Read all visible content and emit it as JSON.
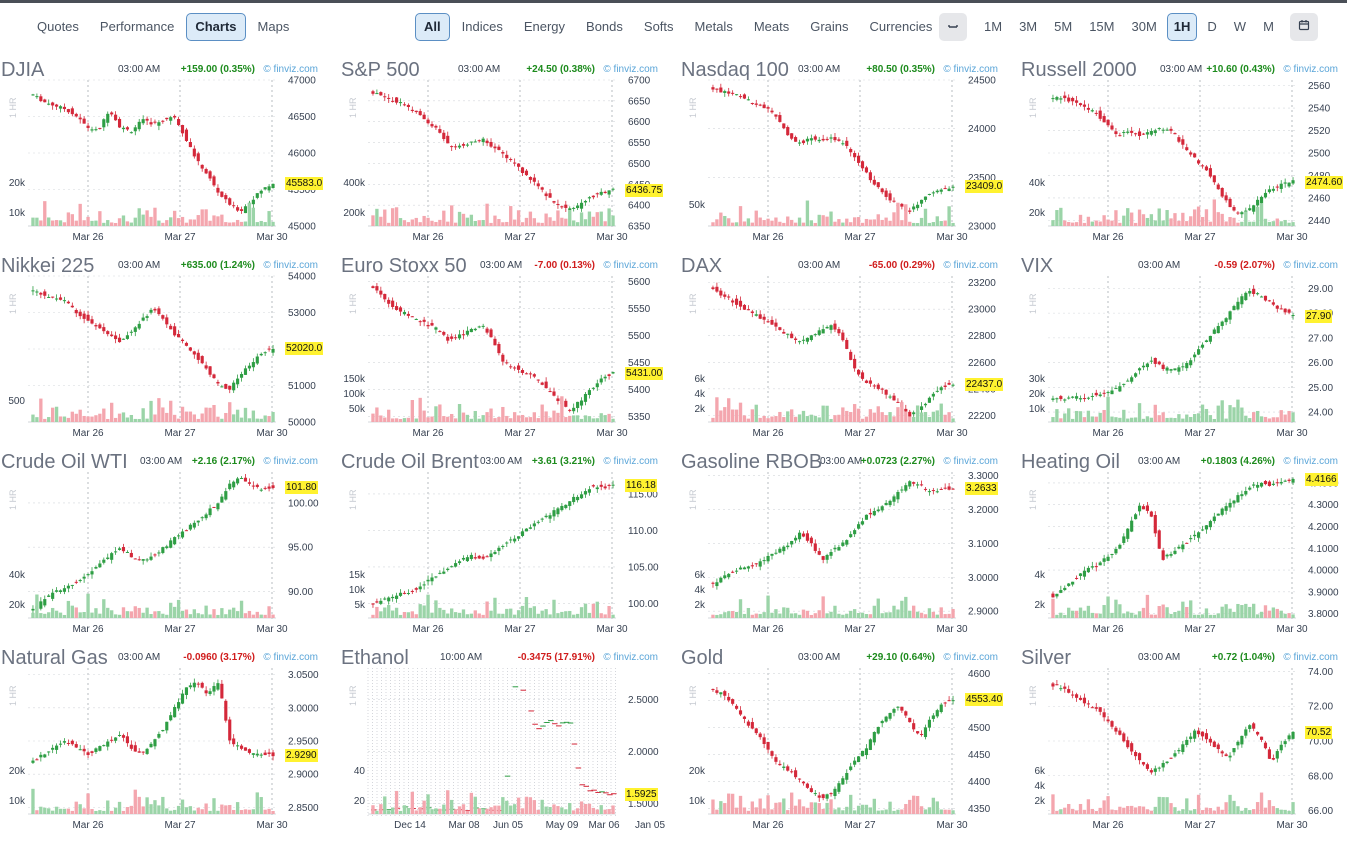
{
  "nav_tabs": [
    {
      "label": "Quotes",
      "active": false
    },
    {
      "label": "Performance",
      "active": false
    },
    {
      "label": "Charts",
      "active": true
    },
    {
      "label": "Maps",
      "active": false
    }
  ],
  "filter_tabs": [
    {
      "label": "All",
      "active": true
    },
    {
      "label": "Indices",
      "active": false
    },
    {
      "label": "Energy",
      "active": false
    },
    {
      "label": "Bonds",
      "active": false
    },
    {
      "label": "Softs",
      "active": false
    },
    {
      "label": "Metals",
      "active": false
    },
    {
      "label": "Meats",
      "active": false
    },
    {
      "label": "Grains",
      "active": false
    },
    {
      "label": "Currencies",
      "active": false
    }
  ],
  "timeframe": {
    "options": [
      "1M",
      "3M",
      "5M",
      "15M",
      "30M",
      "1H",
      "D",
      "W",
      "M"
    ],
    "active": "1H",
    "icons": [
      "minus-icon",
      "calendar-icon"
    ]
  },
  "brand": "© finviz.com",
  "period_label": "1 HR",
  "colors": {
    "up": "#1d8b1d",
    "down": "#d01c1c",
    "candle_up": "#2e9e44",
    "candle_down": "#d4283a",
    "vol_up": "#9bd4a8",
    "vol_down": "#f4a6ae",
    "last_tag": "#fff230"
  },
  "panels": [
    {
      "name": "DJIA",
      "time": "03:00 AM",
      "change": "+159.00 (0.35%)",
      "dir": "up",
      "last": "45583.0",
      "chart_data": {
        "type": "candlestick",
        "y_ticks": [
          "47000",
          "46500",
          "46000",
          "45500",
          "45000"
        ],
        "ylim": [
          45000,
          47000
        ],
        "x_ticks": [
          "Mar 26",
          "Mar 27",
          "Mar 30"
        ],
        "volume_ticks": [
          "20k",
          "10k"
        ],
        "path": [
          46800,
          46700,
          46650,
          46600,
          46500,
          46350,
          46300,
          46600,
          46350,
          46300,
          46450,
          46400,
          46450,
          46500,
          46200,
          45900,
          45700,
          45450,
          45300,
          45200,
          45350,
          45500,
          45583
        ]
      }
    },
    {
      "name": "S&P 500",
      "time": "03:00 AM",
      "change": "+24.50 (0.38%)",
      "dir": "up",
      "last": "6436.75",
      "chart_data": {
        "type": "candlestick",
        "y_ticks": [
          "6700",
          "6650",
          "6600",
          "6550",
          "6500",
          "6450",
          "6400",
          "6350"
        ],
        "ylim": [
          6350,
          6700
        ],
        "x_ticks": [
          "Mar 26",
          "Mar 27",
          "Mar 30"
        ],
        "volume_ticks": [
          "400k",
          "200k"
        ],
        "path": [
          6670,
          6660,
          6650,
          6640,
          6620,
          6600,
          6580,
          6540,
          6540,
          6550,
          6560,
          6540,
          6520,
          6500,
          6470,
          6450,
          6420,
          6400,
          6390,
          6400,
          6420,
          6430,
          6437
        ]
      }
    },
    {
      "name": "Nasdaq 100",
      "time": "03:00 AM",
      "change": "+80.50 (0.35%)",
      "dir": "up",
      "last": "23409.0",
      "chart_data": {
        "type": "candlestick",
        "y_ticks": [
          "24500",
          "24000",
          "23500",
          "23000"
        ],
        "ylim": [
          23000,
          24500
        ],
        "x_ticks": [
          "Mar 26",
          "Mar 27",
          "Mar 30"
        ],
        "volume_ticks": [
          "50k"
        ],
        "path": [
          24400,
          24380,
          24350,
          24300,
          24250,
          24200,
          24100,
          23900,
          23850,
          23900,
          23880,
          23900,
          23850,
          23700,
          23550,
          23400,
          23300,
          23200,
          23150,
          23250,
          23350,
          23380,
          23409
        ]
      }
    },
    {
      "name": "Russell 2000",
      "time": "03:00 AM",
      "change": "+10.60 (0.43%)",
      "dir": "up",
      "last": "2474.60",
      "chart_data": {
        "type": "candlestick",
        "y_ticks": [
          "2560",
          "2540",
          "2520",
          "2500",
          "2480",
          "2460",
          "2440"
        ],
        "ylim": [
          2435,
          2565
        ],
        "x_ticks": [
          "Mar 26",
          "Mar 27",
          "Mar 30"
        ],
        "volume_ticks": [
          "40k",
          "20k"
        ],
        "path": [
          2550,
          2548,
          2545,
          2540,
          2535,
          2525,
          2515,
          2520,
          2515,
          2520,
          2522,
          2518,
          2505,
          2495,
          2485,
          2470,
          2455,
          2445,
          2450,
          2460,
          2468,
          2472,
          2475
        ]
      }
    },
    {
      "name": "Nikkei 225",
      "time": "03:00 AM",
      "change": "+635.00 (1.24%)",
      "dir": "up",
      "last": "52020.0",
      "chart_data": {
        "type": "candlestick",
        "y_ticks": [
          "54000",
          "53000",
          "52000",
          "51000",
          "50000"
        ],
        "ylim": [
          50000,
          54000
        ],
        "x_ticks": [
          "Mar 26",
          "Mar 27",
          "Mar 30"
        ],
        "volume_ticks": [
          "500"
        ],
        "path": [
          53600,
          53500,
          53400,
          53300,
          53000,
          52800,
          52600,
          52400,
          52200,
          52500,
          52800,
          53100,
          52800,
          52400,
          52100,
          51800,
          51400,
          51000,
          50900,
          51300,
          51600,
          51900,
          52020
        ]
      }
    },
    {
      "name": "Euro Stoxx 50",
      "time": "03:00 AM",
      "change": "-7.00 (0.13%)",
      "dir": "down",
      "last": "5431.00",
      "chart_data": {
        "type": "candlestick",
        "y_ticks": [
          "5600",
          "5550",
          "5500",
          "5450",
          "5400",
          "5350"
        ],
        "ylim": [
          5340,
          5610
        ],
        "x_ticks": [
          "Mar 26",
          "Mar 27",
          "Mar 30"
        ],
        "volume_ticks": [
          "150k",
          "100k",
          "50k"
        ],
        "path": [
          5590,
          5570,
          5550,
          5540,
          5530,
          5520,
          5510,
          5490,
          5500,
          5510,
          5520,
          5490,
          5450,
          5440,
          5430,
          5420,
          5400,
          5380,
          5360,
          5380,
          5400,
          5420,
          5431
        ]
      }
    },
    {
      "name": "DAX",
      "time": "03:00 AM",
      "change": "-65.00 (0.29%)",
      "dir": "down",
      "last": "22437.0",
      "chart_data": {
        "type": "candlestick",
        "y_ticks": [
          "23200",
          "23000",
          "22800",
          "22600",
          "22400",
          "22200"
        ],
        "ylim": [
          22150,
          23250
        ],
        "x_ticks": [
          "Mar 26",
          "Mar 27",
          "Mar 30"
        ],
        "volume_ticks": [
          "6k",
          "4k",
          "2k"
        ],
        "path": [
          23150,
          23100,
          23050,
          23000,
          22950,
          22900,
          22850,
          22800,
          22750,
          22800,
          22850,
          22880,
          22750,
          22550,
          22450,
          22420,
          22350,
          22300,
          22200,
          22250,
          22350,
          22420,
          22437
        ]
      }
    },
    {
      "name": "VIX",
      "time": "03:00 AM",
      "change": "-0.59 (2.07%)",
      "dir": "down",
      "last": "27.90",
      "chart_data": {
        "type": "candlestick",
        "y_ticks": [
          "29.00",
          "28.00",
          "27.00",
          "26.00",
          "25.00",
          "24.00"
        ],
        "ylim": [
          23.6,
          29.5
        ],
        "x_ticks": [
          "Mar 26",
          "Mar 27",
          "Mar 30"
        ],
        "volume_ticks": [
          "30k",
          "20k",
          "10k"
        ],
        "path": [
          24.6,
          24.5,
          24.6,
          24.6,
          24.7,
          24.8,
          25.0,
          25.3,
          25.8,
          26.1,
          25.8,
          25.7,
          25.9,
          26.3,
          26.9,
          27.4,
          27.9,
          28.5,
          28.9,
          28.7,
          28.4,
          28.1,
          27.9
        ]
      }
    },
    {
      "name": "Crude Oil WTI",
      "time": "03:00 AM",
      "change": "+2.16 (2.17%)",
      "dir": "up",
      "last": "101.80",
      "chart_data": {
        "type": "candlestick",
        "y_ticks": [
          "100.00",
          "95.00",
          "90.00"
        ],
        "ylim": [
          87,
          103.5
        ],
        "x_ticks": [
          "Mar 26",
          "Mar 27",
          "Mar 30"
        ],
        "volume_ticks": [
          "40k",
          "20k"
        ],
        "path": [
          88,
          89,
          90,
          90.5,
          91,
          92,
          93,
          94,
          95,
          94,
          93.5,
          94,
          95,
          96,
          97,
          98,
          99,
          100,
          102,
          103,
          102,
          101.5,
          101.8
        ]
      }
    },
    {
      "name": "Crude Oil Brent",
      "time": "03:00 AM",
      "change": "+3.61 (3.21%)",
      "dir": "up",
      "last": "116.18",
      "chart_data": {
        "type": "candlestick",
        "y_ticks": [
          "115.00",
          "110.00",
          "105.00",
          "100.00"
        ],
        "ylim": [
          98,
          118
        ],
        "x_ticks": [
          "Mar 26",
          "Mar 27",
          "Mar 30"
        ],
        "volume_ticks": [
          "15k",
          "10k",
          "5k"
        ],
        "path": [
          100,
          100.5,
          101,
          101.5,
          102,
          103,
          104,
          105,
          106,
          106.5,
          106,
          107,
          108,
          109,
          110,
          111,
          112,
          113,
          114,
          115,
          116,
          115.8,
          116.2
        ]
      }
    },
    {
      "name": "Gasoline RBOB",
      "time": "03:00 AM",
      "change": "+0.0723 (2.27%)",
      "dir": "up",
      "last": "3.2633",
      "chart_data": {
        "type": "candlestick",
        "y_ticks": [
          "3.3000",
          "3.2000",
          "3.1000",
          "3.0000",
          "2.9000"
        ],
        "ylim": [
          2.88,
          3.31
        ],
        "x_ticks": [
          "Mar 26",
          "Mar 27",
          "Mar 30"
        ],
        "volume_ticks": [
          "6k",
          "4k",
          "2k"
        ],
        "path": [
          2.98,
          3.0,
          3.02,
          3.03,
          3.04,
          3.06,
          3.08,
          3.1,
          3.13,
          3.1,
          3.05,
          3.08,
          3.1,
          3.14,
          3.18,
          3.2,
          3.22,
          3.25,
          3.28,
          3.27,
          3.25,
          3.26,
          3.2633
        ]
      }
    },
    {
      "name": "Heating Oil",
      "time": "03:00 AM",
      "change": "+0.1803 (4.26%)",
      "dir": "up",
      "last": "4.4166",
      "chart_data": {
        "type": "candlestick",
        "y_ticks": [
          "4.4000",
          "4.3000",
          "4.2000",
          "4.1000",
          "4.0000",
          "3.9000",
          "3.8000"
        ],
        "ylim": [
          3.78,
          4.45
        ],
        "x_ticks": [
          "Mar 26",
          "Mar 27",
          "Mar 30"
        ],
        "volume_ticks": [
          "4k",
          "2k"
        ],
        "path": [
          3.88,
          3.92,
          3.96,
          4.0,
          4.02,
          4.06,
          4.1,
          4.2,
          4.3,
          4.25,
          4.05,
          4.08,
          4.12,
          4.16,
          4.2,
          4.25,
          4.3,
          4.34,
          4.38,
          4.4,
          4.39,
          4.4,
          4.4166
        ]
      }
    },
    {
      "name": "Natural Gas",
      "time": "03:00 AM",
      "change": "-0.0960 (3.17%)",
      "dir": "down",
      "last": "2.9290",
      "chart_data": {
        "type": "candlestick",
        "y_ticks": [
          "3.0500",
          "3.0000",
          "2.9500",
          "2.9000",
          "2.8500"
        ],
        "ylim": [
          2.84,
          3.06
        ],
        "x_ticks": [
          "Mar 26",
          "Mar 27",
          "Mar 30"
        ],
        "volume_ticks": [
          "20k",
          "10k"
        ],
        "path": [
          2.92,
          2.93,
          2.94,
          2.95,
          2.94,
          2.93,
          2.94,
          2.95,
          2.96,
          2.94,
          2.93,
          2.95,
          2.97,
          3.0,
          3.03,
          3.04,
          3.02,
          3.04,
          2.95,
          2.94,
          2.93,
          2.93,
          2.929
        ]
      }
    },
    {
      "name": "Ethanol",
      "time": "10:00 AM",
      "change": "-0.3475 (17.91%)",
      "dir": "down",
      "last": "1.5925",
      "chart_data": {
        "type": "sparse-scatter",
        "y_ticks": [
          "2.5000",
          "2.0000",
          "1.5000"
        ],
        "ylim": [
          1.4,
          2.8
        ],
        "x_ticks": [
          "Dec 14",
          "Mar 08",
          "Jun 05",
          "May 09",
          "Mar 06",
          "Jan 05"
        ],
        "volume_ticks": [
          "40",
          "20"
        ],
        "path": [
          1.45,
          1.44,
          1.45,
          1.46,
          1.44,
          1.45,
          1.43,
          1.44,
          1.45,
          1.44,
          1.45,
          1.44,
          1.45,
          2.65,
          2.55,
          2.2,
          2.3,
          2.25,
          2.3,
          1.7,
          1.62,
          1.6,
          1.5925
        ]
      }
    },
    {
      "name": "Gold",
      "time": "03:00 AM",
      "change": "+29.10 (0.64%)",
      "dir": "up",
      "last": "4553.40",
      "chart_data": {
        "type": "candlestick",
        "y_ticks": [
          "4600",
          "4550",
          "4500",
          "4450",
          "4400",
          "4350"
        ],
        "ylim": [
          4340,
          4610
        ],
        "x_ticks": [
          "Mar 26",
          "Mar 27",
          "Mar 30"
        ],
        "volume_ticks": [
          "20k",
          "10k"
        ],
        "path": [
          4570,
          4560,
          4540,
          4510,
          4490,
          4460,
          4430,
          4420,
          4400,
          4380,
          4370,
          4380,
          4410,
          4440,
          4460,
          4500,
          4520,
          4540,
          4510,
          4480,
          4520,
          4545,
          4553
        ]
      }
    },
    {
      "name": "Silver",
      "time": "03:00 AM",
      "change": "+0.72 (1.04%)",
      "dir": "up",
      "last": "70.52",
      "chart_data": {
        "type": "candlestick",
        "y_ticks": [
          "74.00",
          "72.00",
          "70.00",
          "68.00",
          "66.00"
        ],
        "ylim": [
          65.8,
          74.2
        ],
        "x_ticks": [
          "Mar 26",
          "Mar 27",
          "Mar 30"
        ],
        "volume_ticks": [
          "6k",
          "4k",
          "2k"
        ],
        "path": [
          73.2,
          73.0,
          72.6,
          72.2,
          71.8,
          71.2,
          70.4,
          69.6,
          68.8,
          68.2,
          68.6,
          69.2,
          69.8,
          70.6,
          70.2,
          69.6,
          69.0,
          70.0,
          71.0,
          70.2,
          68.8,
          69.8,
          70.52
        ]
      }
    }
  ]
}
